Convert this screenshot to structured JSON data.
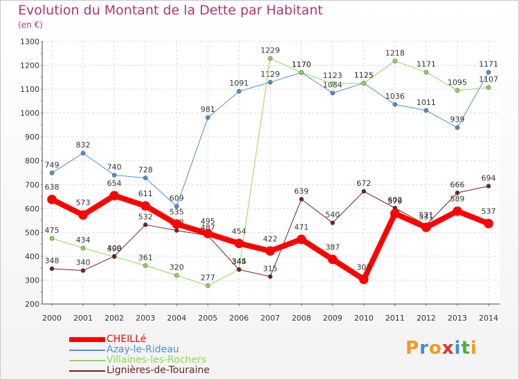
{
  "title": "Evolution du Montant de la Dette par Habitant",
  "unit_label": "(en €)",
  "logo": {
    "text": "Proxiti",
    "colors": [
      "#f39a1a",
      "#3d8fd6",
      "#f39a1a",
      "#e0302b",
      "#3d8fd6",
      "#4cae3f",
      "#f39a1a"
    ]
  },
  "chart_data": {
    "type": "line",
    "x": [
      2000,
      2001,
      2002,
      2003,
      2004,
      2005,
      2006,
      2007,
      2008,
      2009,
      2010,
      2011,
      2012,
      2013,
      2014
    ],
    "ylim": [
      200,
      1300
    ],
    "yticks": [
      200,
      300,
      400,
      500,
      600,
      700,
      800,
      900,
      1000,
      1100,
      1200,
      1300
    ],
    "grid": true,
    "legend_position": "bottom-left",
    "series": [
      {
        "name": "Azay-le-Rideau",
        "color": "#4d8fd0",
        "width": 1,
        "values": [
          749,
          832,
          740,
          728,
          609,
          981,
          1091,
          1129,
          1170,
          1084,
          1125,
          1036,
          1011,
          939,
          1171
        ]
      },
      {
        "name": "Villaines-les-Rochers",
        "color": "#8fd855",
        "width": 1,
        "values": [
          475,
          434,
          398,
          361,
          320,
          277,
          345,
          1229,
          1170,
          1123,
          1125,
          1218,
          1171,
          1095,
          1107
        ]
      },
      {
        "name": "Lignières-de-Touraine",
        "color": "#6e1f1f",
        "width": 1,
        "values": [
          348,
          340,
          400,
          532,
          508,
          487,
          344,
          315,
          639,
          540,
          672,
          602,
          531,
          666,
          694
        ]
      },
      {
        "name": "CHEILLé",
        "color": "#ff0000",
        "width": 8,
        "values": [
          638,
          573,
          654,
          611,
          535,
          495,
          454,
          422,
          471,
          387,
          303,
          579,
          521,
          589,
          537
        ]
      }
    ],
    "legend_order": [
      "CHEILLé",
      "Azay-le-Rideau",
      "Villaines-les-Rochers",
      "Lignières-de-Touraine"
    ]
  }
}
